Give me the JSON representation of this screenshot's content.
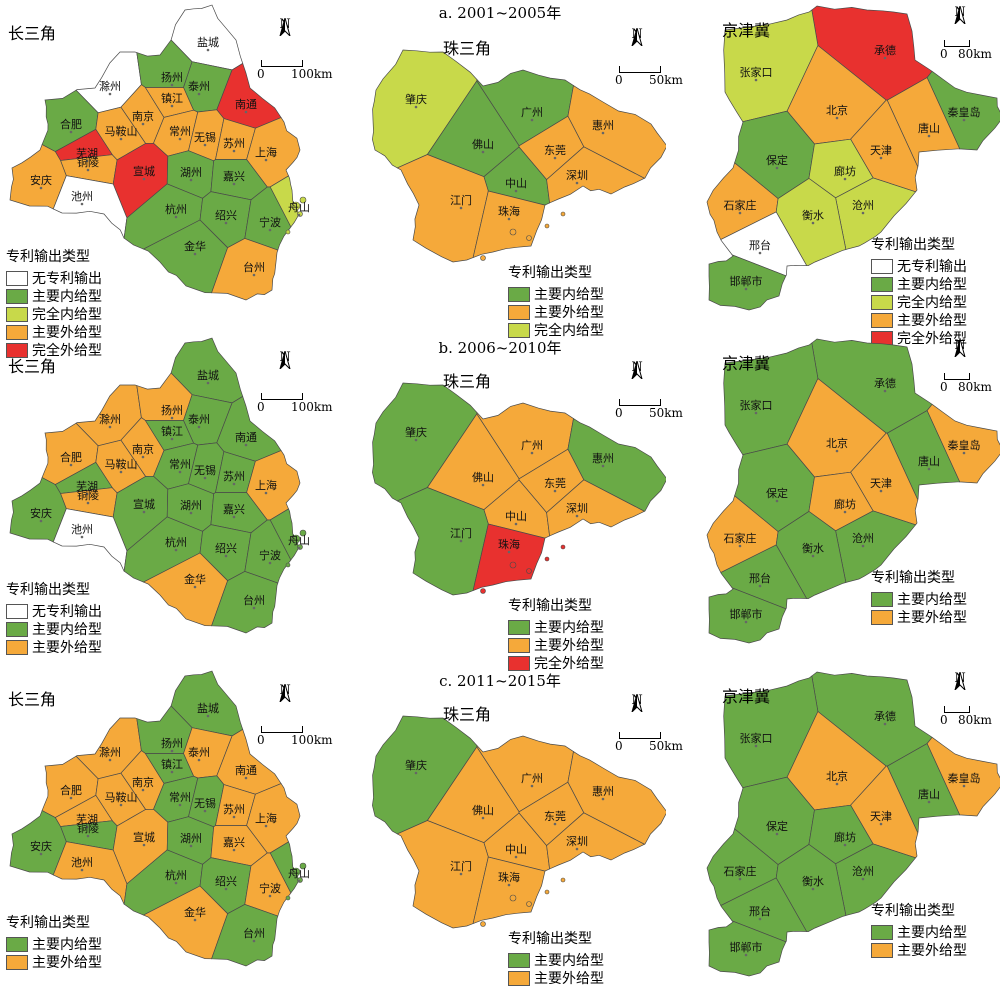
{
  "colors": {
    "none": "#ffffff",
    "main_in": "#6aaa46",
    "full_in": "#c8d94a",
    "main_out": "#f5a93a",
    "full_out": "#e8312f",
    "border": "#4a4a4a"
  },
  "periods": [
    {
      "title": "a. 2001~2005年"
    },
    {
      "title": "b. 2006~2010年"
    },
    {
      "title": "c. 2011~2015年"
    }
  ],
  "regions": {
    "yrd": {
      "name": "长三角",
      "scale_label": "100km"
    },
    "prd": {
      "name": "珠三角",
      "scale_label": "50km"
    },
    "jjj": {
      "name": "京津冀",
      "scale_label": "80km"
    }
  },
  "scale_zero": "0",
  "north_label": "N",
  "legend_title": "专利输出类型",
  "legend_labels": {
    "none": "无专利输出",
    "main_in": "主要内给型",
    "full_in": "完全内给型",
    "main_out": "主要外给型",
    "full_out": "完全外给型"
  },
  "legends": {
    "yrd": [
      [
        "none",
        "main_in",
        "full_in",
        "main_out",
        "full_out"
      ],
      [
        "none",
        "main_in",
        "main_out"
      ],
      [
        "main_in",
        "main_out"
      ]
    ],
    "prd": [
      [
        "main_in",
        "main_out",
        "full_in"
      ],
      [
        "main_in",
        "main_out",
        "full_out"
      ],
      [
        "main_in",
        "main_out"
      ]
    ],
    "jjj": [
      [
        "none",
        "main_in",
        "full_in",
        "main_out",
        "full_out"
      ],
      [
        "main_in",
        "main_out"
      ],
      [
        "main_in",
        "main_out"
      ]
    ]
  },
  "city_types": {
    "yrd": {
      "盐城": [
        "none",
        "main_in",
        "main_in"
      ],
      "滁州": [
        "none",
        "main_out",
        "main_out"
      ],
      "扬州": [
        "main_in",
        "main_out",
        "main_in"
      ],
      "泰州": [
        "main_in",
        "main_in",
        "main_out"
      ],
      "南通": [
        "full_out",
        "main_in",
        "main_out"
      ],
      "合肥": [
        "main_in",
        "main_out",
        "main_out"
      ],
      "南京": [
        "main_out",
        "main_out",
        "main_out"
      ],
      "镇江": [
        "main_out",
        "main_in",
        "main_in"
      ],
      "马鞍山": [
        "main_out",
        "main_out",
        "main_out"
      ],
      "常州": [
        "main_out",
        "main_in",
        "main_in"
      ],
      "无锡": [
        "main_out",
        "main_in",
        "main_in"
      ],
      "苏州": [
        "main_out",
        "main_in",
        "main_out"
      ],
      "上海": [
        "main_out",
        "main_out",
        "main_out"
      ],
      "芜湖": [
        "full_out",
        "main_in",
        "main_out"
      ],
      "铜陵": [
        "main_out",
        "main_out",
        "main_in"
      ],
      "宣城": [
        "full_out",
        "main_in",
        "main_out"
      ],
      "湖州": [
        "main_in",
        "main_in",
        "main_in"
      ],
      "嘉兴": [
        "main_in",
        "main_in",
        "main_out"
      ],
      "安庆": [
        "main_out",
        "main_in",
        "main_in"
      ],
      "池州": [
        "none",
        "none",
        "main_out"
      ],
      "杭州": [
        "main_in",
        "main_in",
        "main_in"
      ],
      "绍兴": [
        "main_in",
        "main_in",
        "main_in"
      ],
      "宁波": [
        "main_in",
        "main_in",
        "main_out"
      ],
      "舟山": [
        "full_in",
        "main_in",
        "main_in"
      ],
      "金华": [
        "main_in",
        "main_out",
        "main_out"
      ],
      "台州": [
        "main_out",
        "main_in",
        "main_in"
      ]
    },
    "prd": {
      "肇庆": [
        "full_in",
        "main_in",
        "main_in"
      ],
      "广州": [
        "main_in",
        "main_out",
        "main_out"
      ],
      "惠州": [
        "main_out",
        "main_in",
        "main_out"
      ],
      "佛山": [
        "main_in",
        "main_out",
        "main_out"
      ],
      "东莞": [
        "main_out",
        "main_out",
        "main_out"
      ],
      "中山": [
        "main_in",
        "main_out",
        "main_out"
      ],
      "深圳": [
        "main_out",
        "main_out",
        "main_out"
      ],
      "江门": [
        "main_out",
        "main_in",
        "main_out"
      ],
      "珠海": [
        "main_out",
        "full_out",
        "main_out"
      ]
    },
    "jjj": {
      "承德": [
        "full_out",
        "main_in",
        "main_in"
      ],
      "张家口": [
        "full_in",
        "main_in",
        "main_in"
      ],
      "秦皇岛": [
        "main_in",
        "main_out",
        "main_out"
      ],
      "北京": [
        "main_out",
        "main_out",
        "main_out"
      ],
      "唐山": [
        "main_out",
        "main_in",
        "main_in"
      ],
      "天津": [
        "main_out",
        "main_out",
        "main_out"
      ],
      "保定": [
        "main_in",
        "main_in",
        "main_in"
      ],
      "廊坊": [
        "full_in",
        "main_out",
        "main_in"
      ],
      "沧州": [
        "full_in",
        "main_in",
        "main_in"
      ],
      "石家庄": [
        "main_out",
        "main_out",
        "main_in"
      ],
      "衡水": [
        "full_in",
        "main_in",
        "main_in"
      ],
      "邢台": [
        "none",
        "main_in",
        "main_in"
      ],
      "邯郸市": [
        "main_in",
        "main_in",
        "main_in"
      ]
    }
  }
}
